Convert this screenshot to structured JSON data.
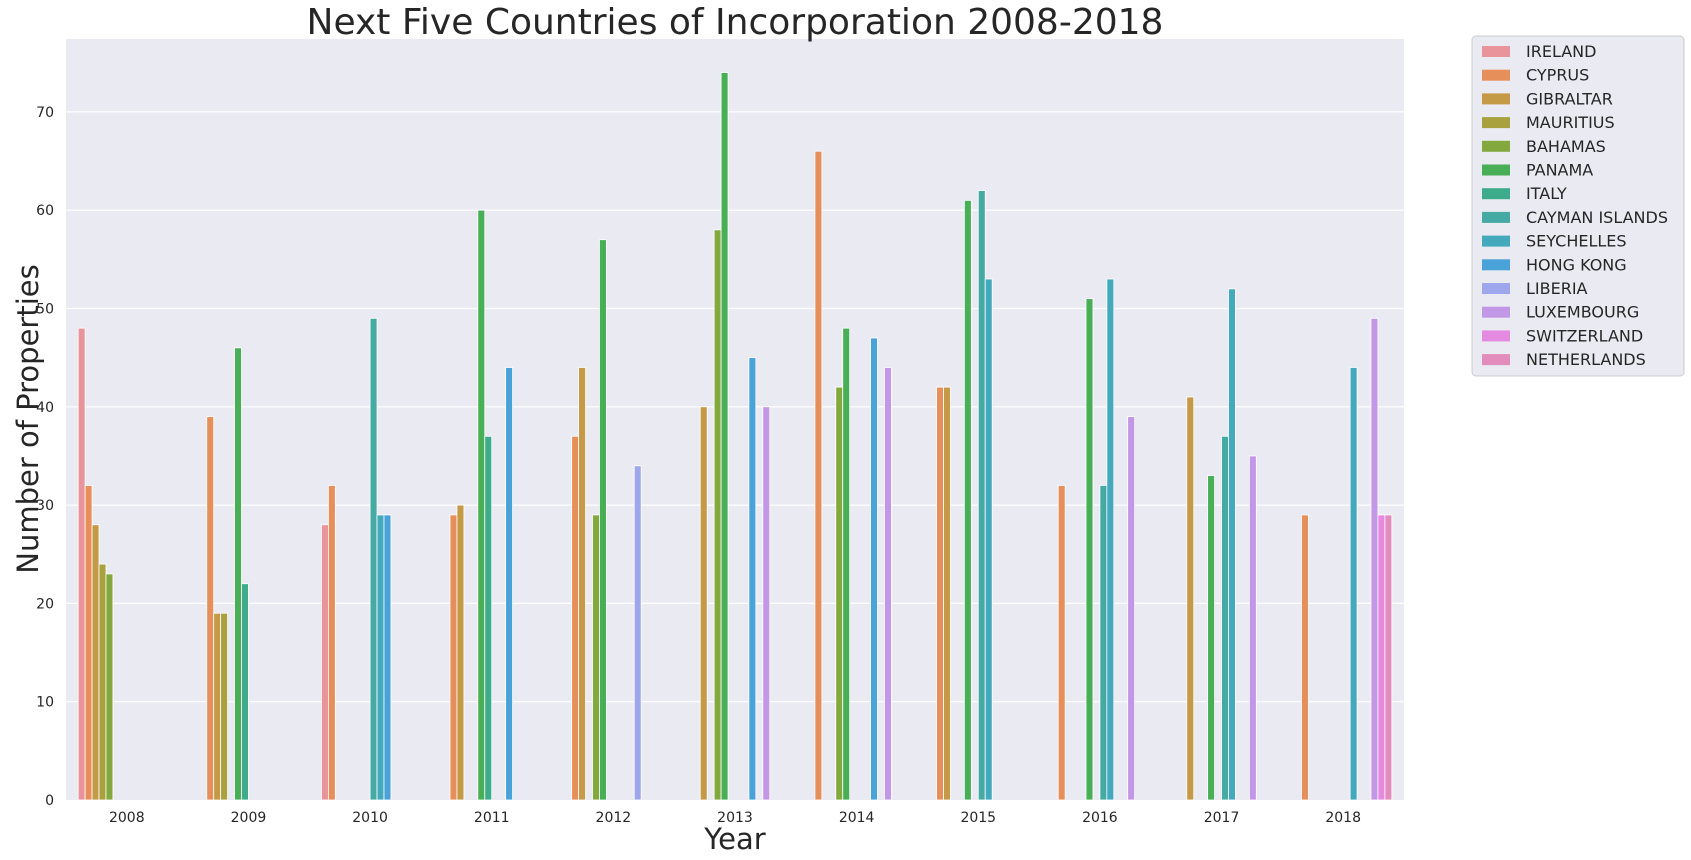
{
  "chart_data": {
    "type": "bar",
    "title": "Next Five Countries of Incorporation 2008-2018",
    "xlabel": "Year",
    "ylabel": "Number of Properties",
    "ylim": [
      0,
      78
    ],
    "yticks": [
      "0",
      "10",
      "20",
      "30",
      "40",
      "50",
      "60",
      "70"
    ],
    "grid": true,
    "legend_position": "outside-top-right",
    "categories": [
      "2008",
      "2009",
      "2010",
      "2011",
      "2012",
      "2013",
      "2014",
      "2015",
      "2016",
      "2017",
      "2018"
    ],
    "series": [
      {
        "name": "IRELAND",
        "color": "#e8949a",
        "values": [
          48,
          null,
          28,
          null,
          null,
          null,
          null,
          null,
          null,
          null,
          null
        ]
      },
      {
        "name": "CYPRUS",
        "color": "#e78f5b",
        "values": [
          32,
          39,
          32,
          29,
          37,
          null,
          66,
          42,
          32,
          null,
          29
        ]
      },
      {
        "name": "GIBRALTAR",
        "color": "#c59a47",
        "values": [
          28,
          19,
          null,
          30,
          44,
          40,
          null,
          42,
          null,
          41,
          null
        ]
      },
      {
        "name": "MAURITIUS",
        "color": "#a9a13e",
        "values": [
          24,
          19,
          null,
          null,
          null,
          null,
          null,
          null,
          null,
          null,
          null
        ]
      },
      {
        "name": "BAHAMAS",
        "color": "#83a83e",
        "values": [
          23,
          null,
          null,
          null,
          29,
          58,
          42,
          null,
          null,
          null,
          null
        ]
      },
      {
        "name": "PANAMA",
        "color": "#48af56",
        "values": [
          null,
          46,
          null,
          60,
          57,
          74,
          48,
          61,
          51,
          33,
          null
        ]
      },
      {
        "name": "ITALY",
        "color": "#3eab8a",
        "values": [
          null,
          22,
          null,
          37,
          null,
          null,
          null,
          null,
          null,
          null,
          null
        ]
      },
      {
        "name": "CAYMAN ISLANDS",
        "color": "#45aaa3",
        "values": [
          null,
          null,
          49,
          null,
          null,
          null,
          null,
          62,
          32,
          37,
          null
        ]
      },
      {
        "name": "SEYCHELLES",
        "color": "#44a9bd",
        "values": [
          null,
          null,
          29,
          null,
          null,
          null,
          null,
          53,
          53,
          52,
          44
        ]
      },
      {
        "name": "HONG KONG",
        "color": "#4aa3d8",
        "values": [
          null,
          null,
          29,
          44,
          null,
          45,
          47,
          null,
          null,
          null,
          null
        ]
      },
      {
        "name": "LIBERIA",
        "color": "#9fa7ec",
        "values": [
          null,
          null,
          null,
          null,
          34,
          null,
          null,
          null,
          null,
          null,
          null
        ]
      },
      {
        "name": "LUXEMBOURG",
        "color": "#c297e6",
        "values": [
          null,
          null,
          null,
          null,
          null,
          40,
          44,
          null,
          39,
          35,
          49
        ]
      },
      {
        "name": "SWITZERLAND",
        "color": "#e48ae0",
        "values": [
          null,
          null,
          null,
          null,
          null,
          null,
          null,
          null,
          null,
          null,
          29
        ]
      },
      {
        "name": "NETHERLANDS",
        "color": "#e38dbd",
        "values": [
          null,
          null,
          null,
          null,
          null,
          null,
          null,
          null,
          null,
          null,
          29
        ]
      }
    ]
  }
}
